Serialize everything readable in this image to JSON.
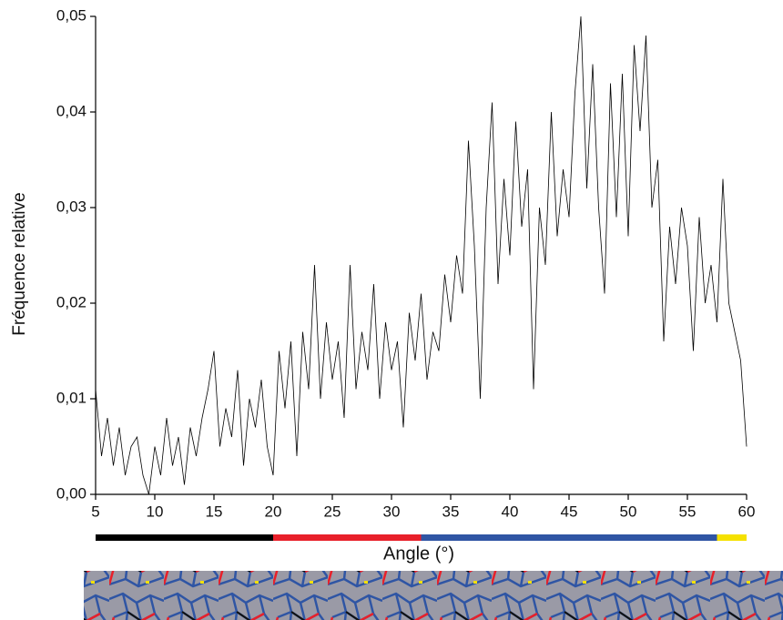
{
  "chart_data": {
    "type": "line",
    "x_label": "Angle (°)",
    "y_label": "Fréquence relative",
    "x": [
      5,
      5.5,
      6,
      6.5,
      7,
      7.5,
      8,
      8.5,
      9,
      9.5,
      10,
      10.5,
      11,
      11.5,
      12,
      12.5,
      13,
      13.5,
      14,
      14.5,
      15,
      15.5,
      16,
      16.5,
      17,
      17.5,
      18,
      18.5,
      19,
      19.5,
      20,
      20.5,
      21,
      21.5,
      22,
      22.5,
      23,
      23.5,
      24,
      24.5,
      25,
      25.5,
      26,
      26.5,
      27,
      27.5,
      28,
      28.5,
      29,
      29.5,
      30,
      30.5,
      31,
      31.5,
      32,
      32.5,
      33,
      33.5,
      34,
      34.5,
      35,
      35.5,
      36,
      36.5,
      37,
      37.5,
      38,
      38.5,
      39,
      39.5,
      40,
      40.5,
      41,
      41.5,
      42,
      42.5,
      43,
      43.5,
      44,
      44.5,
      45,
      45.5,
      46,
      46.5,
      47,
      47.5,
      48,
      48.5,
      49,
      49.5,
      50,
      50.5,
      51,
      51.5,
      52,
      52.5,
      53,
      53.5,
      54,
      54.5,
      55,
      55.5,
      56,
      56.5,
      57,
      57.5,
      58,
      58.5,
      59,
      59.5,
      60
    ],
    "values": [
      0.011,
      0.004,
      0.008,
      0.003,
      0.007,
      0.002,
      0.005,
      0.006,
      0.002,
      0.0,
      0.005,
      0.002,
      0.008,
      0.003,
      0.006,
      0.001,
      0.007,
      0.004,
      0.008,
      0.011,
      0.015,
      0.005,
      0.009,
      0.006,
      0.013,
      0.003,
      0.01,
      0.007,
      0.012,
      0.005,
      0.002,
      0.015,
      0.009,
      0.016,
      0.004,
      0.017,
      0.011,
      0.024,
      0.01,
      0.018,
      0.012,
      0.016,
      0.008,
      0.024,
      0.011,
      0.017,
      0.013,
      0.022,
      0.01,
      0.018,
      0.013,
      0.016,
      0.007,
      0.019,
      0.014,
      0.021,
      0.012,
      0.017,
      0.015,
      0.023,
      0.018,
      0.025,
      0.021,
      0.037,
      0.026,
      0.01,
      0.03,
      0.041,
      0.022,
      0.033,
      0.025,
      0.039,
      0.028,
      0.034,
      0.011,
      0.03,
      0.024,
      0.04,
      0.027,
      0.034,
      0.029,
      0.042,
      0.05,
      0.032,
      0.045,
      0.03,
      0.021,
      0.043,
      0.029,
      0.044,
      0.027,
      0.047,
      0.038,
      0.048,
      0.03,
      0.035,
      0.016,
      0.028,
      0.022,
      0.03,
      0.026,
      0.015,
      0.029,
      0.02,
      0.024,
      0.018,
      0.033,
      0.02,
      0.017,
      0.014,
      0.005
    ],
    "color": "#000000",
    "xlim": [
      5,
      60
    ],
    "xticks": [
      5,
      10,
      15,
      20,
      25,
      30,
      35,
      40,
      45,
      50,
      55,
      60
    ],
    "ylim": [
      0,
      0.05
    ],
    "yticks": [
      {
        "value": 0,
        "label": "0,00"
      },
      {
        "value": 0.01,
        "label": "0,01"
      },
      {
        "value": 0.02,
        "label": "0,02"
      },
      {
        "value": 0.03,
        "label": "0,03"
      },
      {
        "value": 0.04,
        "label": "0,04"
      },
      {
        "value": 0.05,
        "label": "0,05"
      }
    ],
    "bands": [
      {
        "from": 5,
        "to": 20,
        "color": "#000000"
      },
      {
        "from": 20,
        "to": 32.5,
        "color": "#e8202a"
      },
      {
        "from": 32.5,
        "to": 57.5,
        "color": "#2f55a4"
      },
      {
        "from": 57.5,
        "to": 60,
        "color": "#f5e100"
      }
    ]
  }
}
